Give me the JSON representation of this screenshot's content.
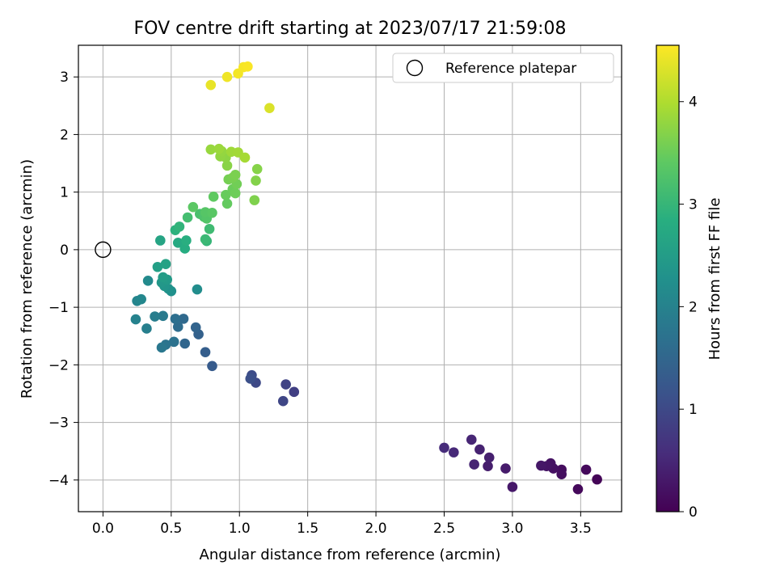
{
  "chart_data": {
    "type": "scatter",
    "title": "FOV centre drift starting at 2023/07/17 21:59:08",
    "xlabel": "Angular distance from reference (arcmin)",
    "ylabel": "Rotation from reference (arcmin)",
    "xlim": [
      -0.18,
      3.8
    ],
    "ylim": [
      -4.55,
      3.55
    ],
    "xticks": [
      0.0,
      0.5,
      1.0,
      1.5,
      2.0,
      2.5,
      3.0,
      3.5
    ],
    "xtick_labels": [
      "0.0",
      "0.5",
      "1.0",
      "1.5",
      "2.0",
      "2.5",
      "3.0",
      "3.5"
    ],
    "yticks": [
      -4,
      -3,
      -2,
      -1,
      0,
      1,
      2,
      3
    ],
    "ytick_labels": [
      "−4",
      "−3",
      "−2",
      "−1",
      "0",
      "1",
      "2",
      "3"
    ],
    "grid": true,
    "legend": {
      "position": "top-right",
      "entries": [
        "Reference platepar"
      ]
    },
    "reference_point": {
      "x": 0.0,
      "y": 0.0
    },
    "colorbar": {
      "label": "Hours from first FF file",
      "range": [
        0,
        4.55
      ],
      "ticks": [
        0,
        1,
        2,
        3,
        4
      ],
      "tick_labels": [
        "0",
        "1",
        "2",
        "3",
        "4"
      ],
      "colormap": "viridis"
    },
    "points": [
      {
        "x": 3.62,
        "y": -3.99,
        "c": 0.05
      },
      {
        "x": 3.48,
        "y": -4.16,
        "c": 0.1
      },
      {
        "x": 3.54,
        "y": -3.82,
        "c": 0.12
      },
      {
        "x": 3.36,
        "y": -3.82,
        "c": 0.15
      },
      {
        "x": 3.36,
        "y": -3.9,
        "c": 0.18
      },
      {
        "x": 3.3,
        "y": -3.8,
        "c": 0.2
      },
      {
        "x": 3.28,
        "y": -3.71,
        "c": 0.22
      },
      {
        "x": 3.25,
        "y": -3.76,
        "c": 0.25
      },
      {
        "x": 3.21,
        "y": -3.75,
        "c": 0.28
      },
      {
        "x": 3.0,
        "y": -4.12,
        "c": 0.3
      },
      {
        "x": 2.95,
        "y": -3.8,
        "c": 0.33
      },
      {
        "x": 2.82,
        "y": -3.76,
        "c": 0.37
      },
      {
        "x": 2.83,
        "y": -3.61,
        "c": 0.4
      },
      {
        "x": 2.76,
        "y": -3.47,
        "c": 0.43
      },
      {
        "x": 2.72,
        "y": -3.73,
        "c": 0.45
      },
      {
        "x": 2.7,
        "y": -3.3,
        "c": 0.48
      },
      {
        "x": 2.57,
        "y": -3.52,
        "c": 0.52
      },
      {
        "x": 2.5,
        "y": -3.44,
        "c": 0.55
      },
      {
        "x": 1.4,
        "y": -2.47,
        "c": 0.85
      },
      {
        "x": 1.34,
        "y": -2.34,
        "c": 0.9
      },
      {
        "x": 1.32,
        "y": -2.63,
        "c": 0.95
      },
      {
        "x": 1.12,
        "y": -2.31,
        "c": 1.0
      },
      {
        "x": 1.09,
        "y": -2.18,
        "c": 1.05
      },
      {
        "x": 1.08,
        "y": -2.24,
        "c": 1.1
      },
      {
        "x": 0.8,
        "y": -2.02,
        "c": 1.3
      },
      {
        "x": 0.75,
        "y": -1.78,
        "c": 1.35
      },
      {
        "x": 0.7,
        "y": -1.47,
        "c": 1.4
      },
      {
        "x": 0.68,
        "y": -1.35,
        "c": 1.45
      },
      {
        "x": 0.6,
        "y": -1.63,
        "c": 1.5
      },
      {
        "x": 0.59,
        "y": -1.2,
        "c": 1.55
      },
      {
        "x": 0.55,
        "y": -1.34,
        "c": 1.6
      },
      {
        "x": 0.53,
        "y": -1.2,
        "c": 1.65
      },
      {
        "x": 0.52,
        "y": -1.6,
        "c": 1.7
      },
      {
        "x": 0.46,
        "y": -1.65,
        "c": 1.75
      },
      {
        "x": 0.43,
        "y": -1.7,
        "c": 1.8
      },
      {
        "x": 0.44,
        "y": -1.15,
        "c": 1.85
      },
      {
        "x": 0.38,
        "y": -1.16,
        "c": 1.9
      },
      {
        "x": 0.32,
        "y": -1.37,
        "c": 1.95
      },
      {
        "x": 0.24,
        "y": -1.21,
        "c": 2.0
      },
      {
        "x": 0.25,
        "y": -0.89,
        "c": 2.05
      },
      {
        "x": 0.28,
        "y": -0.86,
        "c": 2.1
      },
      {
        "x": 0.33,
        "y": -0.54,
        "c": 2.15
      },
      {
        "x": 0.69,
        "y": -0.69,
        "c": 2.2
      },
      {
        "x": 0.5,
        "y": -0.72,
        "c": 2.25
      },
      {
        "x": 0.48,
        "y": -0.68,
        "c": 2.3
      },
      {
        "x": 0.45,
        "y": -0.63,
        "c": 2.35
      },
      {
        "x": 0.43,
        "y": -0.57,
        "c": 2.4
      },
      {
        "x": 0.47,
        "y": -0.52,
        "c": 2.45
      },
      {
        "x": 0.44,
        "y": -0.48,
        "c": 2.5
      },
      {
        "x": 0.4,
        "y": -0.3,
        "c": 2.55
      },
      {
        "x": 0.46,
        "y": -0.25,
        "c": 2.6
      },
      {
        "x": 0.42,
        "y": 0.16,
        "c": 2.65
      },
      {
        "x": 0.55,
        "y": 0.12,
        "c": 2.75
      },
      {
        "x": 0.6,
        "y": 0.02,
        "c": 2.8
      },
      {
        "x": 0.61,
        "y": 0.16,
        "c": 2.85
      },
      {
        "x": 0.53,
        "y": 0.34,
        "c": 2.9
      },
      {
        "x": 0.56,
        "y": 0.4,
        "c": 2.95
      },
      {
        "x": 0.76,
        "y": 0.15,
        "c": 3.0
      },
      {
        "x": 0.75,
        "y": 0.18,
        "c": 3.05
      },
      {
        "x": 0.78,
        "y": 0.36,
        "c": 3.1
      },
      {
        "x": 0.62,
        "y": 0.56,
        "c": 3.15
      },
      {
        "x": 0.71,
        "y": 0.62,
        "c": 3.2
      },
      {
        "x": 0.74,
        "y": 0.57,
        "c": 3.25
      },
      {
        "x": 0.76,
        "y": 0.54,
        "c": 3.3
      },
      {
        "x": 0.75,
        "y": 0.65,
        "c": 3.33
      },
      {
        "x": 0.8,
        "y": 0.64,
        "c": 3.36
      },
      {
        "x": 0.66,
        "y": 0.74,
        "c": 3.38
      },
      {
        "x": 0.81,
        "y": 0.92,
        "c": 3.42
      },
      {
        "x": 0.91,
        "y": 0.8,
        "c": 3.45
      },
      {
        "x": 0.9,
        "y": 0.95,
        "c": 3.48
      },
      {
        "x": 0.95,
        "y": 1.05,
        "c": 3.5
      },
      {
        "x": 0.97,
        "y": 0.98,
        "c": 3.52
      },
      {
        "x": 0.98,
        "y": 1.14,
        "c": 3.55
      },
      {
        "x": 0.92,
        "y": 1.22,
        "c": 3.58
      },
      {
        "x": 0.95,
        "y": 1.25,
        "c": 3.6
      },
      {
        "x": 0.97,
        "y": 1.3,
        "c": 3.62
      },
      {
        "x": 1.11,
        "y": 0.86,
        "c": 3.65
      },
      {
        "x": 1.12,
        "y": 1.2,
        "c": 3.68
      },
      {
        "x": 1.13,
        "y": 1.4,
        "c": 3.7
      },
      {
        "x": 0.91,
        "y": 1.46,
        "c": 3.72
      },
      {
        "x": 0.9,
        "y": 1.6,
        "c": 3.75
      },
      {
        "x": 0.86,
        "y": 1.62,
        "c": 3.78
      },
      {
        "x": 0.87,
        "y": 1.71,
        "c": 3.8
      },
      {
        "x": 0.79,
        "y": 1.74,
        "c": 3.82
      },
      {
        "x": 0.85,
        "y": 1.75,
        "c": 3.85
      },
      {
        "x": 0.94,
        "y": 1.7,
        "c": 3.88
      },
      {
        "x": 0.99,
        "y": 1.69,
        "c": 3.9
      },
      {
        "x": 1.04,
        "y": 1.6,
        "c": 3.93
      },
      {
        "x": 1.22,
        "y": 2.46,
        "c": 4.3
      },
      {
        "x": 0.79,
        "y": 2.86,
        "c": 4.4
      },
      {
        "x": 0.91,
        "y": 3.0,
        "c": 4.45
      },
      {
        "x": 0.99,
        "y": 3.06,
        "c": 4.48
      },
      {
        "x": 1.03,
        "y": 3.17,
        "c": 4.5
      },
      {
        "x": 1.06,
        "y": 3.18,
        "c": 4.52
      }
    ]
  }
}
